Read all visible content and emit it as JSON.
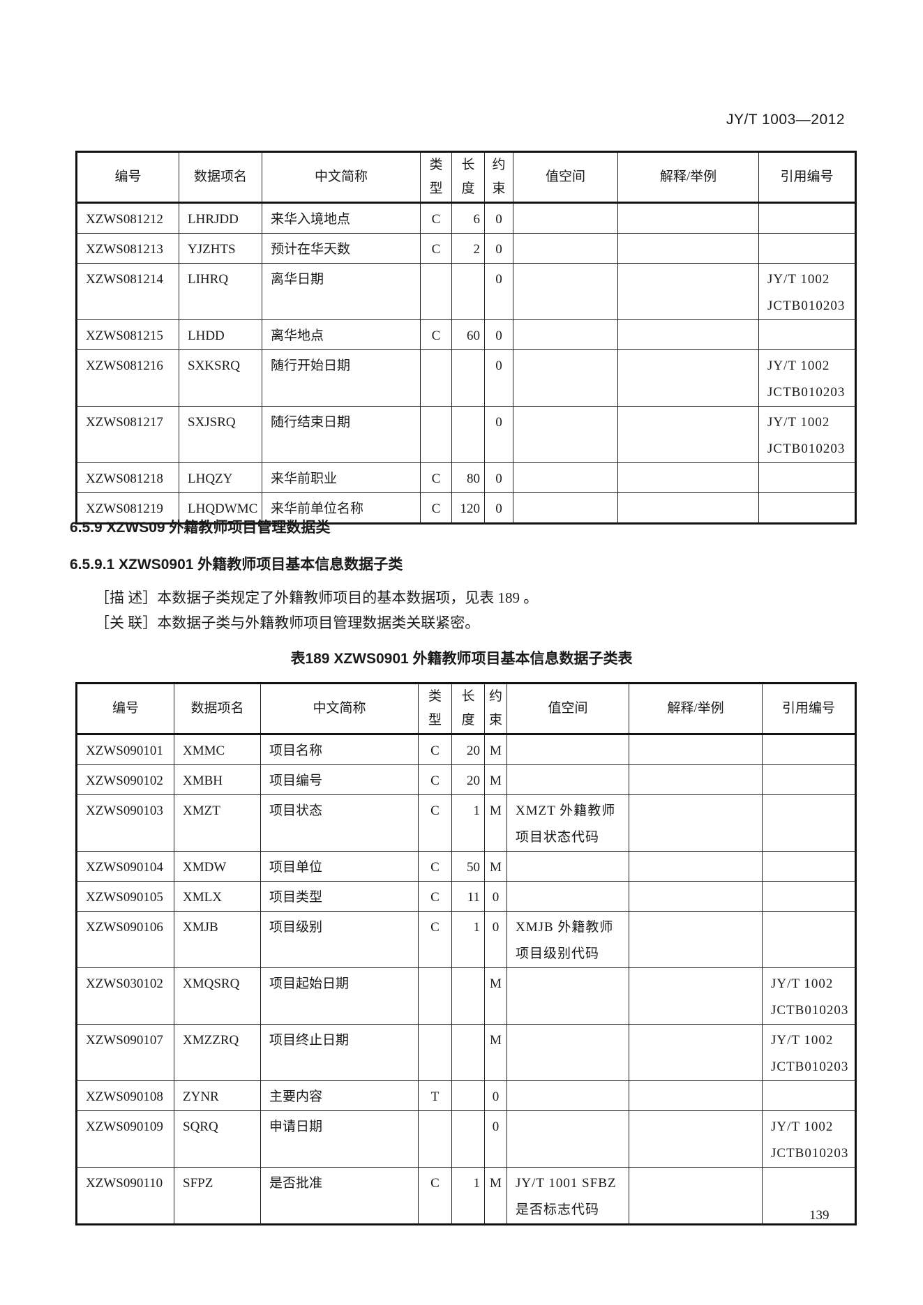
{
  "header": {
    "std_code": "JY/T 1003—2012"
  },
  "columns": [
    "编号",
    "数据项名",
    "中文简称",
    "类\n型",
    "长\n度",
    "约\n束",
    "值空间",
    "解释/举例",
    "引用编号"
  ],
  "table1": {
    "rows": [
      [
        "XZWS081212",
        "LHRJDD",
        "来华入境地点",
        "C",
        "6",
        "0",
        "",
        "",
        ""
      ],
      [
        "XZWS081213",
        "YJZHTS",
        "预计在华天数",
        "C",
        "2",
        "0",
        "",
        "",
        ""
      ],
      [
        "XZWS081214",
        "LIHRQ",
        "离华日期",
        "",
        "",
        "0",
        "",
        "",
        "JY/T 1002 JCTB010203"
      ],
      [
        "XZWS081215",
        "LHDD",
        "离华地点",
        "C",
        "60",
        "0",
        "",
        "",
        ""
      ],
      [
        "XZWS081216",
        "SXKSRQ",
        "随行开始日期",
        "",
        "",
        "0",
        "",
        "",
        "JY/T 1002 JCTB010203"
      ],
      [
        "XZWS081217",
        "SXJSRQ",
        "随行结束日期",
        "",
        "",
        "0",
        "",
        "",
        "JY/T 1002 JCTB010203"
      ],
      [
        "XZWS081218",
        "LHQZY",
        "来华前职业",
        "C",
        "80",
        "0",
        "",
        "",
        ""
      ],
      [
        "XZWS081219",
        "LHQDWMC",
        "来华前单位名称",
        "C",
        "120",
        "0",
        "",
        "",
        ""
      ]
    ]
  },
  "section": {
    "heading_659": "6.5.9  XZWS09 外籍教师项目管理数据类",
    "heading_6591": "6.5.9.1  XZWS0901 外籍教师项目基本信息数据子类",
    "describe": "［描 述］本数据子类规定了外籍教师项目的基本数据项，见表 189   。",
    "relate": "［关 联］本数据子类与外籍教师项目管理数据类关联紧密。",
    "caption": "表189  XZWS0901 外籍教师项目基本信息数据子类表"
  },
  "table2": {
    "rows": [
      [
        "XZWS090101",
        "XMMC",
        "项目名称",
        "C",
        "20",
        "M",
        "",
        "",
        ""
      ],
      [
        "XZWS090102",
        "XMBH",
        "项目编号",
        "C",
        "20",
        "M",
        "",
        "",
        ""
      ],
      [
        "XZWS090103",
        "XMZT",
        "项目状态",
        "C",
        "1",
        "M",
        "XMZT 外籍教师 项目状态代码",
        "",
        ""
      ],
      [
        "XZWS090104",
        "XMDW",
        "项目单位",
        "C",
        "50",
        "M",
        "",
        "",
        ""
      ],
      [
        "XZWS090105",
        "XMLX",
        "项目类型",
        "C",
        "11",
        "0",
        "",
        "",
        ""
      ],
      [
        "XZWS090106",
        "XMJB",
        "项目级别",
        "C",
        "1",
        "0",
        "XMJB 外籍教师 项目级别代码",
        "",
        ""
      ],
      [
        "XZWS030102",
        "XMQSRQ",
        "项目起始日期",
        "",
        "",
        "M",
        "",
        "",
        "JY/T 1002 JCTB010203"
      ],
      [
        "XZWS090107",
        "XMZZRQ",
        "项目终止日期",
        "",
        "",
        "M",
        "",
        "",
        "JY/T 1002 JCTB010203"
      ],
      [
        "XZWS090108",
        "ZYNR",
        "主要内容",
        "T",
        "",
        "0",
        "",
        "",
        ""
      ],
      [
        "XZWS090109",
        "SQRQ",
        "申请日期",
        "",
        "",
        "0",
        "",
        "",
        "JY/T 1002 JCTB010203"
      ],
      [
        "XZWS090110",
        "SFPZ",
        "是否批准",
        "C",
        "1",
        "M",
        "JY/T 1001 SFBZ 是否标志代码",
        "",
        ""
      ]
    ]
  },
  "page_number": "139"
}
